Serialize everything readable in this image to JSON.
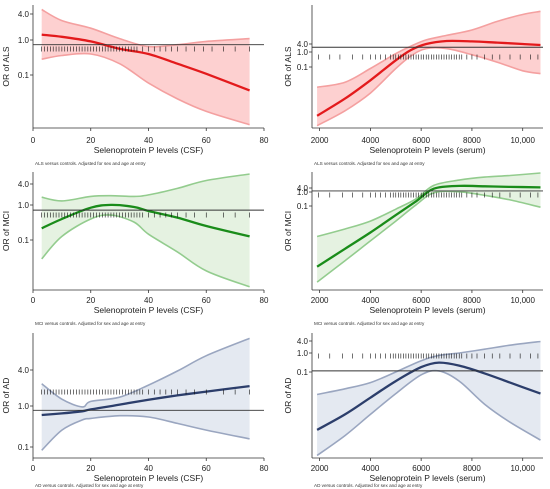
{
  "panels": [
    {
      "id": "als-csf",
      "type": "line",
      "xlabel": "Selenoprotein P levels (CSF)",
      "ylabel": "OR of ALS",
      "caption": "ALS versus controls. Adjusted for sex and age at entry",
      "xticks": [
        "0",
        "20",
        "40",
        "60",
        "80"
      ],
      "yticks": [
        "4.0",
        "1.0",
        "0.1"
      ],
      "xlim": [
        0,
        80
      ],
      "scale": "log",
      "ylim": [
        0.01,
        9
      ],
      "ref_line": 1.0,
      "colors": {
        "line": "#e31a1c",
        "band": "#fdd0d0",
        "band_edge": "#f4a0a0"
      },
      "series": [
        {
          "x": [
            3,
            10,
            20,
            30,
            40,
            50,
            60,
            75
          ],
          "estimate": [
            1.75,
            1.55,
            1.2,
            0.8,
            0.6,
            0.35,
            0.2,
            0.08
          ],
          "lower": [
            0.45,
            0.55,
            0.6,
            0.35,
            0.12,
            0.05,
            0.025,
            0.012
          ],
          "upper": [
            7.0,
            3.8,
            2.5,
            1.4,
            0.9,
            1.0,
            1.2,
            1.4
          ]
        }
      ],
      "rug": [
        3,
        4,
        5,
        6,
        7,
        8,
        9,
        10,
        11,
        12,
        13,
        14,
        15,
        16,
        17,
        18,
        19,
        20,
        21,
        22,
        23,
        24,
        25,
        26,
        27,
        28,
        29,
        30,
        31,
        32,
        33,
        34,
        35,
        36,
        38,
        40,
        42,
        44,
        46,
        48,
        50,
        53,
        56,
        59,
        62,
        66,
        70,
        75
      ]
    },
    {
      "id": "als-serum",
      "type": "line",
      "xlabel": "Selenoprotein P levels (serum)",
      "ylabel": "OR of ALS",
      "caption": "ALS versus controls. Adjusted for sex and age at entry",
      "xticks": [
        "2000",
        "4000",
        "6000",
        "8000",
        "10,000"
      ],
      "yticks": [
        "4.0",
        "1.0",
        "0.1"
      ],
      "xlim": [
        1700,
        10800
      ],
      "scale": "log",
      "ylim": [
        0.0015,
        30
      ],
      "ref_line": 1.0,
      "colors": {
        "line": "#e31a1c",
        "band": "#fdd0d0",
        "band_edge": "#f4a0a0"
      },
      "series": [
        {
          "x": [
            1900,
            3000,
            4000,
            5000,
            5600,
            6200,
            7000,
            8000,
            9000,
            10000,
            10700
          ],
          "estimate": [
            0.004,
            0.016,
            0.07,
            0.35,
            0.8,
            1.3,
            1.65,
            1.6,
            1.45,
            1.3,
            1.2
          ],
          "lower": [
            0.0018,
            0.006,
            0.025,
            0.18,
            0.5,
            0.9,
            0.9,
            0.55,
            0.3,
            0.15,
            0.12
          ],
          "upper": [
            0.04,
            0.06,
            0.18,
            0.6,
            1.1,
            1.8,
            2.6,
            4.0,
            8.0,
            14.0,
            18.0
          ]
        }
      ],
      "rug": [
        1950,
        2400,
        2800,
        3300,
        3700,
        4000,
        4200,
        4400,
        4600,
        4800,
        4900,
        5000,
        5100,
        5200,
        5300,
        5400,
        5500,
        5600,
        5700,
        5800,
        5900,
        6000,
        6100,
        6200,
        6300,
        6400,
        6500,
        6600,
        6700,
        6800,
        6900,
        7000,
        7100,
        7200,
        7300,
        7400,
        7500,
        7600,
        7800,
        8000,
        8200,
        8500,
        8800,
        9100,
        9500,
        9900,
        10300,
        10600
      ]
    },
    {
      "id": "mci-csf",
      "type": "line",
      "xlabel": "Selenoprotein P levels (CSF)",
      "ylabel": "OR of MCI",
      "caption": "MCI versus controls. Adjusted for sex and age at entry",
      "xticks": [
        "0",
        "20",
        "40",
        "60",
        "80"
      ],
      "yticks": [
        "4.0",
        "1.0",
        "0.1"
      ],
      "xlim": [
        0,
        80
      ],
      "scale": "log",
      "ylim": [
        0.01,
        9
      ],
      "ref_line": 1.0,
      "colors": {
        "line": "#1a8c1a",
        "band": "#e5f2e1",
        "band_edge": "#93cc8e"
      },
      "series": [
        {
          "x": [
            3,
            10,
            20,
            27,
            35,
            40,
            50,
            60,
            75
          ],
          "estimate": [
            0.35,
            0.6,
            1.15,
            1.35,
            1.2,
            0.95,
            0.65,
            0.4,
            0.22
          ],
          "lower": [
            0.06,
            0.22,
            0.6,
            0.75,
            0.5,
            0.25,
            0.09,
            0.03,
            0.012
          ],
          "upper": [
            2.1,
            1.7,
            2.2,
            2.3,
            2.2,
            2.4,
            3.5,
            5.5,
            8.0
          ]
        }
      ],
      "rug": [
        3,
        4,
        5,
        6,
        7,
        8,
        9,
        10,
        11,
        12,
        13,
        14,
        15,
        16,
        17,
        18,
        19,
        20,
        21,
        22,
        23,
        24,
        25,
        26,
        27,
        28,
        29,
        30,
        31,
        32,
        33,
        34,
        35,
        36,
        37,
        38,
        40,
        42,
        44,
        46,
        48,
        50,
        53,
        56,
        60,
        66,
        70,
        75
      ]
    },
    {
      "id": "mci-serum",
      "type": "line",
      "xlabel": "Selenoprotein P levels (serum)",
      "ylabel": "OR of MCI",
      "caption": "MCI versus controls. Adjusted for sex and age at entry",
      "xticks": [
        "2000",
        "4000",
        "6000",
        "8000",
        "10,000"
      ],
      "yticks": [
        "4.0",
        "1.0",
        "0.1"
      ],
      "xlim": [
        1700,
        10800
      ],
      "scale": "log",
      "ylim": [
        1e-05,
        9
      ],
      "ref_line": 1.0,
      "colors": {
        "line": "#1a8c1a",
        "band": "#e5f2e1",
        "band_edge": "#93cc8e"
      },
      "series": [
        {
          "x": [
            1900,
            3000,
            4000,
            5000,
            5800,
            6500,
            7500,
            8500,
            9500,
            10700
          ],
          "estimate": [
            0.00015,
            0.0012,
            0.008,
            0.06,
            0.3,
            1.3,
            1.8,
            1.7,
            1.6,
            1.5
          ],
          "lower": [
            2.5e-05,
            0.0003,
            0.003,
            0.03,
            0.2,
            0.8,
            0.9,
            0.6,
            0.35,
            0.15
          ],
          "upper": [
            0.005,
            0.012,
            0.03,
            0.12,
            0.4,
            1.9,
            3.5,
            5.0,
            6.0,
            8.0
          ]
        }
      ],
      "rug": [
        1950,
        2400,
        2900,
        3300,
        3700,
        4000,
        4200,
        4400,
        4600,
        4800,
        4900,
        5000,
        5100,
        5200,
        5300,
        5400,
        5500,
        5600,
        5700,
        5800,
        5900,
        6000,
        6100,
        6200,
        6300,
        6400,
        6500,
        6600,
        6700,
        6800,
        6900,
        7000,
        7100,
        7200,
        7300,
        7400,
        7500,
        7600,
        7800,
        8000,
        8200,
        8500,
        8800,
        9100,
        9500,
        9900,
        10300,
        10600
      ]
    },
    {
      "id": "ad-csf",
      "type": "line",
      "xlabel": "Selenoprotein P levels (CSF)",
      "ylabel": "OR of AD",
      "caption": "AD versus controls. Adjusted for sex and age at entry",
      "xticks": [
        "0",
        "20",
        "40",
        "60",
        "80"
      ],
      "yticks": [
        "4.0",
        "1.0",
        "0.1"
      ],
      "xlim": [
        0,
        80
      ],
      "scale": "log",
      "ylim": [
        0.08,
        60
      ],
      "ref_line": 1.0,
      "colors": {
        "line": "#2c3e6b",
        "band": "#e4e9f1",
        "band_edge": "#9aa6c0"
      },
      "series": [
        {
          "x": [
            3,
            10,
            17,
            20,
            30,
            40,
            50,
            60,
            75
          ],
          "estimate": [
            0.78,
            0.85,
            0.95,
            1.05,
            1.35,
            1.75,
            2.2,
            2.7,
            3.6
          ],
          "lower": [
            0.12,
            0.35,
            0.6,
            0.65,
            0.75,
            0.7,
            0.5,
            0.35,
            0.22
          ],
          "upper": [
            4.1,
            1.8,
            1.2,
            1.6,
            2.0,
            3.8,
            8.0,
            18.0,
            45.0
          ]
        }
      ],
      "rug": [
        3,
        4,
        5,
        6,
        7,
        8,
        9,
        10,
        11,
        12,
        13,
        14,
        15,
        16,
        17,
        18,
        19,
        20,
        21,
        22,
        23,
        24,
        25,
        26,
        27,
        28,
        29,
        30,
        31,
        32,
        33,
        34,
        35,
        36,
        37,
        38,
        40,
        42,
        44,
        46,
        48,
        50,
        53,
        56,
        60,
        66,
        70,
        75
      ]
    },
    {
      "id": "ad-serum",
      "type": "line",
      "xlabel": "Selenoprotein P levels (serum)",
      "ylabel": "OR of AD",
      "caption": "AD versus controls. Adjusted for sex and age at entry",
      "xticks": [
        "2000",
        "4000",
        "6000",
        "8000",
        "10,000"
      ],
      "yticks": [
        "4.0",
        "1.0",
        "0.1"
      ],
      "xlim": [
        1700,
        10800
      ],
      "scale": "log",
      "ylim": [
        0.0004,
        30
      ],
      "ref_line": 1.0,
      "colors": {
        "line": "#2c3e6b",
        "band": "#e4e9f1",
        "band_edge": "#9aa6c0"
      },
      "series": [
        {
          "x": [
            1900,
            3000,
            4000,
            5000,
            6000,
            6700,
            7500,
            8500,
            9500,
            10700
          ],
          "estimate": [
            0.005,
            0.02,
            0.09,
            0.4,
            1.4,
            2.1,
            1.6,
            0.8,
            0.35,
            0.13
          ],
          "lower": [
            0.0005,
            0.003,
            0.02,
            0.13,
            0.7,
            1.0,
            0.4,
            0.05,
            0.01,
            0.002
          ],
          "upper": [
            0.12,
            0.2,
            0.35,
            0.9,
            2.5,
            4.0,
            5.0,
            7.0,
            10.0,
            14.0
          ]
        }
      ],
      "rug": [
        1950,
        2400,
        2900,
        3300,
        3700,
        4000,
        4200,
        4400,
        4600,
        4800,
        4900,
        5000,
        5100,
        5200,
        5300,
        5400,
        5500,
        5600,
        5700,
        5800,
        5900,
        6000,
        6100,
        6200,
        6300,
        6400,
        6500,
        6600,
        6700,
        6800,
        6900,
        7000,
        7100,
        7200,
        7300,
        7400,
        7500,
        7600,
        7800,
        8000,
        8200,
        8500,
        8800,
        9100,
        9500,
        9900,
        10300,
        10600
      ]
    }
  ]
}
